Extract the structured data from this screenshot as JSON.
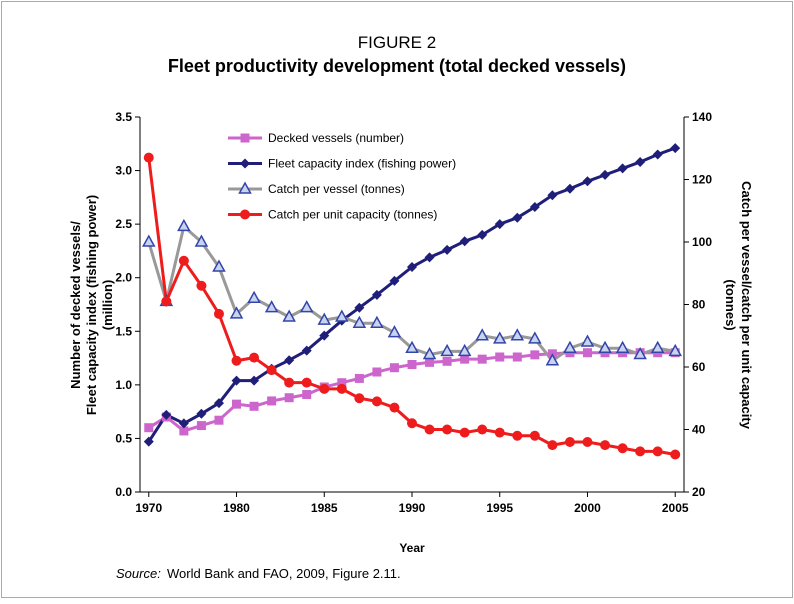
{
  "chart_data": {
    "type": "line",
    "figure_label": "FIGURE 2",
    "title": "Fleet productivity development (total decked vessels)",
    "x_label": "Year",
    "y_label": [
      "Number of decked vessels/",
      "Fleet capacity index (fishing power)",
      "(million)"
    ],
    "y2_label": [
      "Catch per vessel/catch per unit capacity",
      "(tonnes)"
    ],
    "source_prefix": "Source:",
    "source": "World Bank and FAO, 2009, Figure 2.11.",
    "categories": [
      "1970",
      null,
      null,
      null,
      null,
      "1980",
      null,
      null,
      null,
      null,
      "1985",
      null,
      null,
      null,
      null,
      "1990",
      null,
      null,
      null,
      null,
      "1995",
      null,
      null,
      null,
      null,
      "2000",
      null,
      null,
      null,
      null,
      "2005"
    ],
    "ylim": [
      0,
      3.5
    ],
    "yticks": [
      {
        "value": 0,
        "label": "0.0"
      },
      0.5,
      {
        "value": 1,
        "label": "1.0"
      },
      1.5,
      {
        "value": 2,
        "label": "2.0"
      },
      2.5,
      {
        "value": 3,
        "label": "3.0"
      },
      3.5
    ],
    "y2lim": [
      20,
      140
    ],
    "y2ticks": [
      20,
      40,
      60,
      80,
      100,
      120,
      140
    ],
    "series": [
      {
        "name": "Decked vessels (number)",
        "color": "#cc66cc",
        "marker": "square",
        "values": [
          0.6,
          0.7,
          0.57,
          0.62,
          0.67,
          0.82,
          0.8,
          0.85,
          0.88,
          0.91,
          0.98,
          1.02,
          1.06,
          1.12,
          1.16,
          1.19,
          1.21,
          1.22,
          1.24,
          1.24,
          1.26,
          1.26,
          1.28,
          1.29,
          1.3,
          1.3,
          1.3,
          1.3,
          1.3,
          1.3,
          1.3
        ]
      },
      {
        "name": "Fleet capacity index (fishing power)",
        "color": "#1f1f7a",
        "marker": "diamond",
        "values": [
          0.47,
          0.72,
          0.64,
          0.73,
          0.83,
          1.04,
          1.04,
          1.15,
          1.23,
          1.32,
          1.46,
          1.6,
          1.72,
          1.84,
          1.97,
          2.1,
          2.19,
          2.26,
          2.34,
          2.4,
          2.5,
          2.56,
          2.66,
          2.77,
          2.83,
          2.9,
          2.96,
          3.02,
          3.08,
          3.15,
          3.21
        ]
      },
      {
        "name": "Catch per vessel (tonnes)",
        "color": "#999999",
        "marker": "triangle",
        "axis": "y2",
        "values": [
          100,
          81,
          105,
          100,
          92,
          77,
          82,
          79,
          76,
          79,
          75,
          76,
          74,
          74,
          71,
          66,
          64,
          65,
          65,
          70,
          69,
          70,
          69,
          62,
          66,
          68,
          66,
          66,
          64,
          66,
          65
        ]
      },
      {
        "name": "Catch per unit capacity (tonnes)",
        "color": "#ee1c1c",
        "marker": "circle",
        "axis": "y2",
        "values": [
          127,
          81,
          94,
          86,
          77,
          62,
          63,
          59,
          55,
          55,
          53,
          53,
          50,
          49,
          47,
          42,
          40,
          40,
          39,
          40,
          39,
          38,
          38,
          35,
          36,
          36,
          35,
          34,
          33,
          33,
          32
        ]
      }
    ]
  }
}
